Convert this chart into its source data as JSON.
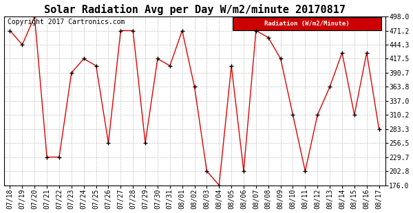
{
  "title": "Solar Radiation Avg per Day W/m2/minute 20170817",
  "copyright_text": "Copyright 2017 Cartronics.com",
  "legend_label": "Radiation (W/m2/Minute)",
  "x_labels": [
    "07/18",
    "07/19",
    "07/20",
    "07/21",
    "07/22",
    "07/23",
    "07/24",
    "07/25",
    "07/26",
    "07/27",
    "07/28",
    "07/29",
    "07/30",
    "07/31",
    "08/01",
    "08/02",
    "08/03",
    "08/04",
    "08/05",
    "08/06",
    "08/07",
    "08/08",
    "08/09",
    "08/10",
    "08/11",
    "08/12",
    "08/13",
    "08/14",
    "08/15",
    "08/16",
    "08/17"
  ],
  "y_values": [
    471.2,
    444.3,
    498.0,
    229.7,
    229.7,
    390.7,
    417.5,
    404.0,
    256.5,
    471.2,
    471.2,
    256.5,
    417.5,
    404.0,
    471.2,
    363.8,
    202.8,
    176.0,
    404.0,
    202.8,
    471.2,
    458.0,
    417.5,
    310.2,
    202.8,
    310.2,
    363.8,
    429.0,
    310.2,
    429.0,
    283.3
  ],
  "ylim": [
    176.0,
    498.0
  ],
  "yticks": [
    176.0,
    202.8,
    229.7,
    256.5,
    283.3,
    310.2,
    337.0,
    363.8,
    390.7,
    417.5,
    444.3,
    471.2,
    498.0
  ],
  "line_color": "#dd0000",
  "marker_color": "#000000",
  "bg_color": "#ffffff",
  "grid_color": "#bbbbbb",
  "legend_bg": "#cc0000",
  "legend_text_color": "#ffffff",
  "title_fontsize": 11,
  "tick_fontsize": 7,
  "copyright_fontsize": 7
}
